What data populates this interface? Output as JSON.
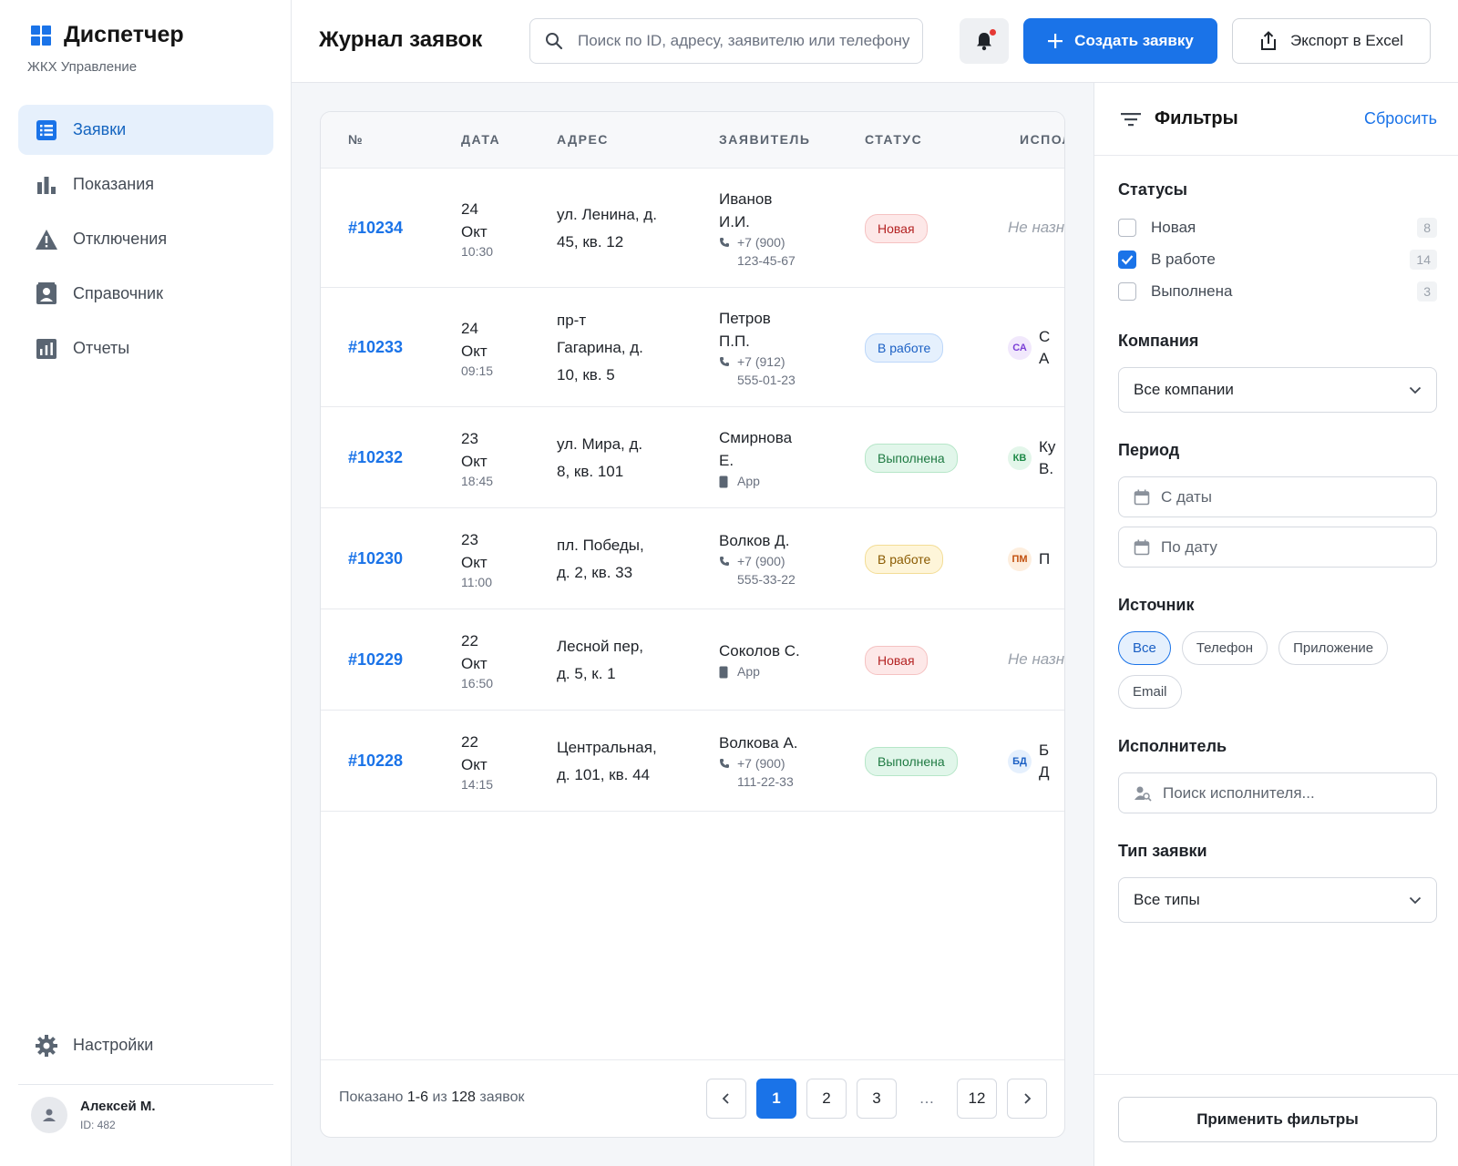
{
  "brand": {
    "title": "Диспетчер",
    "subtitle": "ЖКХ Управление"
  },
  "nav": [
    {
      "label": "Заявки",
      "icon": "list-icon",
      "active": true
    },
    {
      "label": "Показания",
      "icon": "bar-chart-icon"
    },
    {
      "label": "Отключения",
      "icon": "warning-icon"
    },
    {
      "label": "Справочник",
      "icon": "contacts-icon"
    },
    {
      "label": "Отчеты",
      "icon": "report-icon"
    }
  ],
  "settings_label": "Настройки",
  "user": {
    "name": "Алексей М.",
    "id": "ID: 482"
  },
  "header": {
    "title": "Журнал заявок",
    "search_placeholder": "Поиск по ID, адресу, заявителю или телефону",
    "create_label": "Создать заявку",
    "export_label": "Экспорт в Excel"
  },
  "table": {
    "columns": [
      "№",
      "ДАТА",
      "АДРЕС",
      "ЗАЯВИТЕЛЬ",
      "СТАТУС",
      "ИСПОЛНИТЕЛЬ"
    ],
    "rows": [
      {
        "id": "#10234",
        "day": "24",
        "month": "Окт",
        "time": "10:30",
        "address": [
          "ул. Ленина, д.",
          "45, кв. 12"
        ],
        "applicant": [
          "Иванов",
          "И.И."
        ],
        "contact_type": "phone",
        "contact": [
          "+7 (900)",
          "123-45-67"
        ],
        "status": "Новая",
        "status_style": "b-new",
        "executor_initials": "",
        "executor_name": [
          "Не назначен"
        ]
      },
      {
        "id": "#10233",
        "day": "24",
        "month": "Окт",
        "time": "09:15",
        "address": [
          "пр-т",
          "Гагарина, д.",
          "10, кв. 5"
        ],
        "applicant": [
          "Петров",
          "П.П."
        ],
        "contact_type": "phone",
        "contact": [
          "+7 (912)",
          "555-01-23"
        ],
        "status": "В работе",
        "status_style": "b-work-blue",
        "executor_initials": "СА",
        "executor_color": "#7b3fd6",
        "executor_bg": "#f1e8fc",
        "executor_name": [
          "С",
          "А"
        ]
      },
      {
        "id": "#10232",
        "day": "23",
        "month": "Окт",
        "time": "18:45",
        "address": [
          "ул. Мира, д.",
          "8, кв. 101"
        ],
        "applicant": [
          "Смирнова",
          "Е."
        ],
        "contact_type": "app",
        "contact": [
          "App"
        ],
        "status": "Выполнена",
        "status_style": "b-done",
        "executor_initials": "КВ",
        "executor_color": "#1e8a48",
        "executor_bg": "#e3f6ea",
        "executor_name": [
          "Ку",
          "В."
        ]
      },
      {
        "id": "#10230",
        "day": "23",
        "month": "Окт",
        "time": "11:00",
        "address": [
          "пл. Победы,",
          "д. 2, кв. 33"
        ],
        "applicant": [
          "Волков Д."
        ],
        "contact_type": "phone",
        "contact": [
          "+7 (900)",
          "555-33-22"
        ],
        "status": "В работе",
        "status_style": "b-work-yellow",
        "executor_initials": "ПМ",
        "executor_color": "#c2510f",
        "executor_bg": "#fdeede",
        "executor_name": [
          "П"
        ]
      },
      {
        "id": "#10229",
        "day": "22",
        "month": "Окт",
        "time": "16:50",
        "address": [
          "Лесной пер,",
          "д. 5, к. 1"
        ],
        "applicant": [
          "Соколов С."
        ],
        "contact_type": "app",
        "contact": [
          "App"
        ],
        "status": "Новая",
        "status_style": "b-new",
        "executor_initials": "",
        "executor_name": [
          "Не назначен"
        ]
      },
      {
        "id": "#10228",
        "day": "22",
        "month": "Окт",
        "time": "14:15",
        "address": [
          "Центральная,",
          "д. 101, кв. 44"
        ],
        "applicant": [
          "Волкова А."
        ],
        "contact_type": "phone",
        "contact": [
          "+7 (900)",
          "111-22-33"
        ],
        "status": "Выполнена",
        "status_style": "b-done",
        "executor_initials": "БД",
        "executor_color": "#1a5fc4",
        "executor_bg": "#e5f0fd",
        "executor_name": [
          "Б",
          "Д"
        ]
      }
    ]
  },
  "footer": {
    "shown_prefix": "Показано",
    "shown_range": "1-6",
    "shown_of": "из",
    "shown_total": "128",
    "shown_suffix": "заявок",
    "pages": [
      "1",
      "2",
      "3",
      "…",
      "12"
    ],
    "active_page": "1"
  },
  "filters": {
    "title": "Фильтры",
    "reset": "Сбросить",
    "statuses_label": "Статусы",
    "statuses": [
      {
        "label": "Новая",
        "count": "8",
        "checked": false
      },
      {
        "label": "В работе",
        "count": "14",
        "checked": true
      },
      {
        "label": "Выполнена",
        "count": "3",
        "checked": false
      }
    ],
    "company_label": "Компания",
    "company_value": "Все компании",
    "period_label": "Период",
    "date_from": "С даты",
    "date_to": "По дату",
    "source_label": "Источник",
    "sources": [
      {
        "label": "Все",
        "active": true
      },
      {
        "label": "Телефон"
      },
      {
        "label": "Приложение"
      },
      {
        "label": "Email"
      }
    ],
    "executor_label": "Исполнитель",
    "executor_placeholder": "Поиск исполнителя...",
    "type_label": "Тип заявки",
    "type_value": "Все типы",
    "apply": "Применить фильтры"
  },
  "colors": {
    "accent": "#1a73e8",
    "active_nav_bg": "#e6f0fc"
  }
}
